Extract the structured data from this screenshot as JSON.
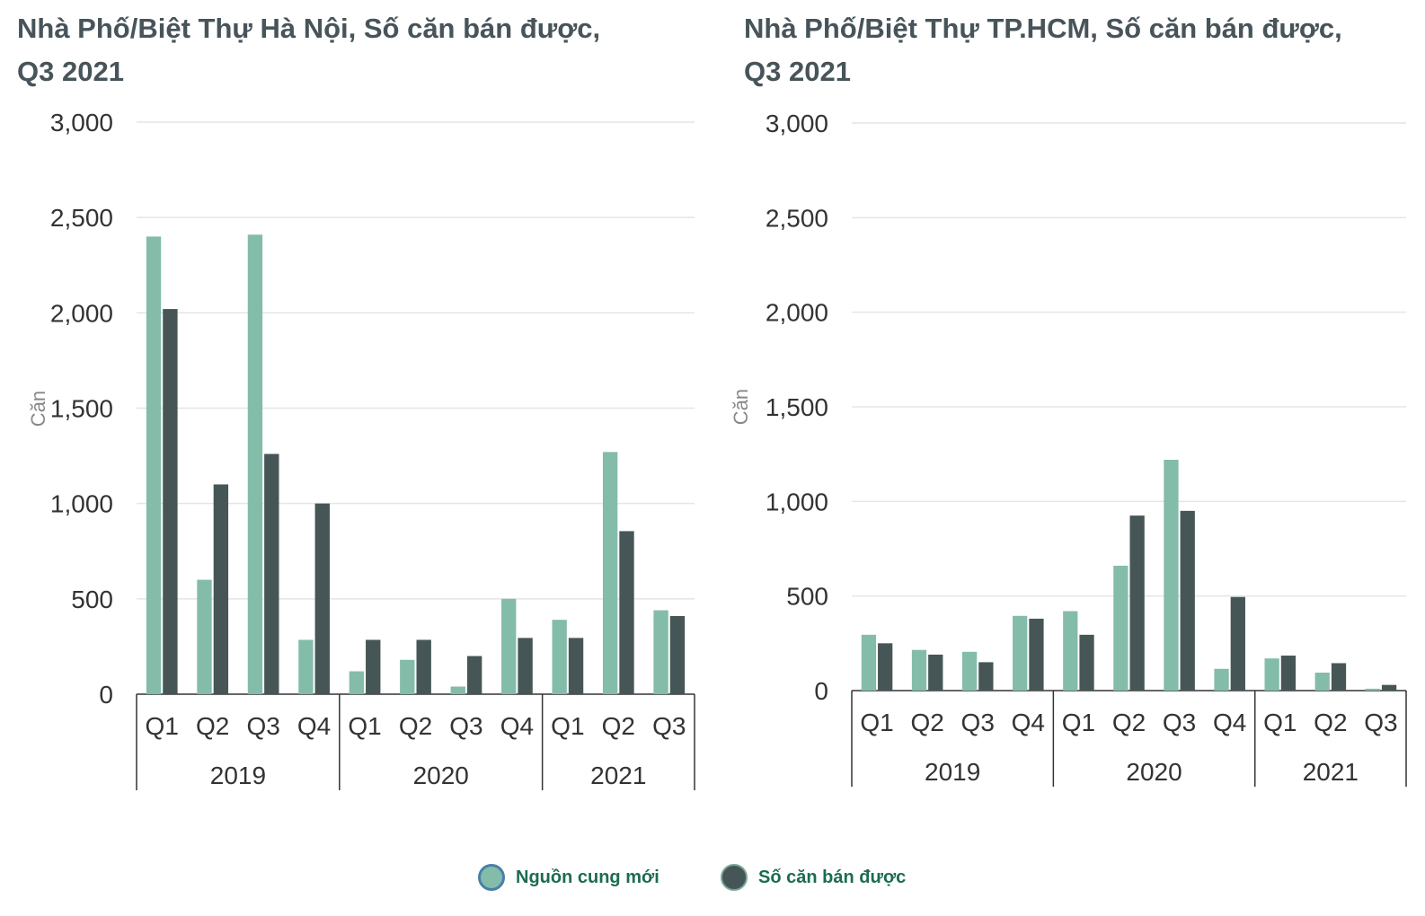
{
  "colors": {
    "new_supply": "#84bcaa",
    "sold": "#465656",
    "new_supply_border": "#4a7fa8",
    "sold_border": "#7aa896",
    "legend_text": "#1c6b52",
    "grid": "#e3e6e6",
    "axis_text": "#333333"
  },
  "legend": [
    {
      "label": "Nguồn cung mới",
      "color": "#84bcaa"
    },
    {
      "label": "Số căn bán được",
      "color": "#465656"
    }
  ],
  "chart_data": [
    {
      "type": "bar",
      "title": "Nhà Phố/Biệt Thự Hà Nội, Số căn bán được,",
      "title_line2": "Q3 2021",
      "ylabel": "Căn",
      "ylim": [
        0,
        3000
      ],
      "yticks": [
        "0",
        "500",
        "1,000",
        "1,500",
        "2,000",
        "2,500",
        "3,000"
      ],
      "grid": true,
      "groups": [
        {
          "label": "2019",
          "categories": [
            "Q1",
            "Q2",
            "Q3",
            "Q4"
          ]
        },
        {
          "label": "2020",
          "categories": [
            "Q1",
            "Q2",
            "Q3",
            "Q4"
          ]
        },
        {
          "label": "2021",
          "categories": [
            "Q1",
            "Q2",
            "Q3"
          ]
        }
      ],
      "series": [
        {
          "name": "Nguồn cung mới",
          "values": [
            2400,
            600,
            2410,
            285,
            120,
            180,
            40,
            500,
            390,
            1270,
            440
          ]
        },
        {
          "name": "Số căn bán được",
          "values": [
            2020,
            1100,
            1260,
            1000,
            285,
            285,
            200,
            295,
            295,
            855,
            410
          ]
        }
      ]
    },
    {
      "type": "bar",
      "title": "Nhà Phố/Biệt Thự TP.HCM, Số căn bán được,",
      "title_line2": "Q3 2021",
      "ylabel": "Căn",
      "ylim": [
        0,
        3000
      ],
      "yticks": [
        "0",
        "500",
        "1,000",
        "1,500",
        "2,000",
        "2,500",
        "3,000"
      ],
      "grid": true,
      "groups": [
        {
          "label": "2019",
          "categories": [
            "Q1",
            "Q2",
            "Q3",
            "Q4"
          ]
        },
        {
          "label": "2020",
          "categories": [
            "Q1",
            "Q2",
            "Q3",
            "Q4"
          ]
        },
        {
          "label": "2021",
          "categories": [
            "Q1",
            "Q2",
            "Q3"
          ]
        }
      ],
      "series": [
        {
          "name": "Nguồn cung mới",
          "values": [
            295,
            215,
            205,
            395,
            420,
            660,
            1220,
            115,
            170,
            95,
            10
          ]
        },
        {
          "name": "Số căn bán được",
          "values": [
            250,
            190,
            150,
            380,
            295,
            925,
            950,
            495,
            185,
            145,
            30
          ]
        }
      ]
    }
  ]
}
